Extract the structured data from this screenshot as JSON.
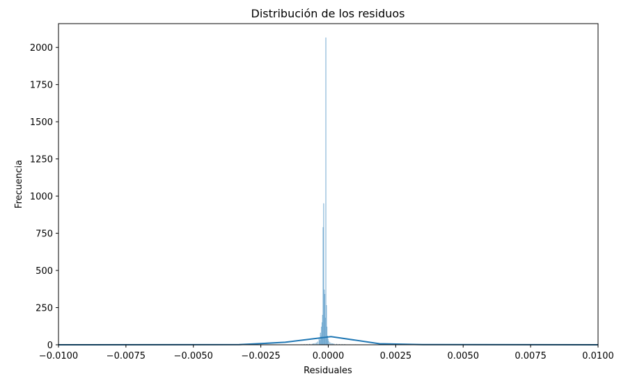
{
  "chart_data": {
    "type": "bar",
    "title": "Distribución de los residuos",
    "xlabel": "Residuales",
    "ylabel": "Frecuencia",
    "xlim": [
      -0.01,
      0.01
    ],
    "ylim": [
      0,
      2160
    ],
    "grid": false,
    "x_ticks": [
      {
        "value": -0.01,
        "label": "−0.0100"
      },
      {
        "value": -0.0075,
        "label": "−0.0075"
      },
      {
        "value": -0.005,
        "label": "−0.0050"
      },
      {
        "value": -0.0025,
        "label": "−0.0025"
      },
      {
        "value": 0.0,
        "label": "0.0000"
      },
      {
        "value": 0.0025,
        "label": "0.0025"
      },
      {
        "value": 0.005,
        "label": "0.0050"
      },
      {
        "value": 0.0075,
        "label": "0.0075"
      },
      {
        "value": 0.01,
        "label": "0.0100"
      }
    ],
    "y_ticks": [
      {
        "value": 0,
        "label": "0"
      },
      {
        "value": 250,
        "label": "250"
      },
      {
        "value": 500,
        "label": "500"
      },
      {
        "value": 750,
        "label": "750"
      },
      {
        "value": 1000,
        "label": "1000"
      },
      {
        "value": 1250,
        "label": "1250"
      },
      {
        "value": 1500,
        "label": "1500"
      },
      {
        "value": 1750,
        "label": "1750"
      },
      {
        "value": 2000,
        "label": "2000"
      }
    ],
    "histogram": {
      "color": "#8fbcdc",
      "edge_color": "#5d9cc7",
      "bin_width": 2e-05,
      "bins": [
        {
          "x": -0.001,
          "count": 2
        },
        {
          "x": -0.0009,
          "count": 3
        },
        {
          "x": -0.0008,
          "count": 4
        },
        {
          "x": -0.0007,
          "count": 5
        },
        {
          "x": -0.0006,
          "count": 6
        },
        {
          "x": -0.00055,
          "count": 8
        },
        {
          "x": -0.0005,
          "count": 10
        },
        {
          "x": -0.00045,
          "count": 14
        },
        {
          "x": -0.0004,
          "count": 20
        },
        {
          "x": -0.00035,
          "count": 45
        },
        {
          "x": -0.00032,
          "count": 30
        },
        {
          "x": -0.0003,
          "count": 80
        },
        {
          "x": -0.00028,
          "count": 60
        },
        {
          "x": -0.00026,
          "count": 120
        },
        {
          "x": -0.00024,
          "count": 150
        },
        {
          "x": -0.00022,
          "count": 200
        },
        {
          "x": -0.0002,
          "count": 790
        },
        {
          "x": -0.00018,
          "count": 950
        },
        {
          "x": -0.00016,
          "count": 370
        },
        {
          "x": -0.00014,
          "count": 340
        },
        {
          "x": -0.00012,
          "count": 180
        },
        {
          "x": -0.0001,
          "count": 2065
        },
        {
          "x": -8e-05,
          "count": 265
        },
        {
          "x": -6e-05,
          "count": 120
        },
        {
          "x": -4e-05,
          "count": 60
        },
        {
          "x": -2e-05,
          "count": 40
        },
        {
          "x": 0.0,
          "count": 25
        },
        {
          "x": 5e-05,
          "count": 15
        },
        {
          "x": 0.0001,
          "count": 10
        },
        {
          "x": 0.00015,
          "count": 8
        },
        {
          "x": 0.0002,
          "count": 6
        },
        {
          "x": 0.0003,
          "count": 5
        },
        {
          "x": 0.0004,
          "count": 4
        },
        {
          "x": 0.0005,
          "count": 3
        },
        {
          "x": 0.0006,
          "count": 3
        },
        {
          "x": 0.0008,
          "count": 2
        },
        {
          "x": 0.001,
          "count": 2
        },
        {
          "x": 0.0012,
          "count": 1
        }
      ]
    },
    "kde": {
      "color": "#1f77b4",
      "points": [
        {
          "x": -0.01,
          "y": 0
        },
        {
          "x": -0.0033,
          "y": 1
        },
        {
          "x": -0.0025,
          "y": 8
        },
        {
          "x": -0.0016,
          "y": 17
        },
        {
          "x": 0.0001,
          "y": 55
        },
        {
          "x": 0.0019,
          "y": 7
        },
        {
          "x": 0.0035,
          "y": 1
        },
        {
          "x": 0.01,
          "y": 0
        }
      ]
    }
  }
}
